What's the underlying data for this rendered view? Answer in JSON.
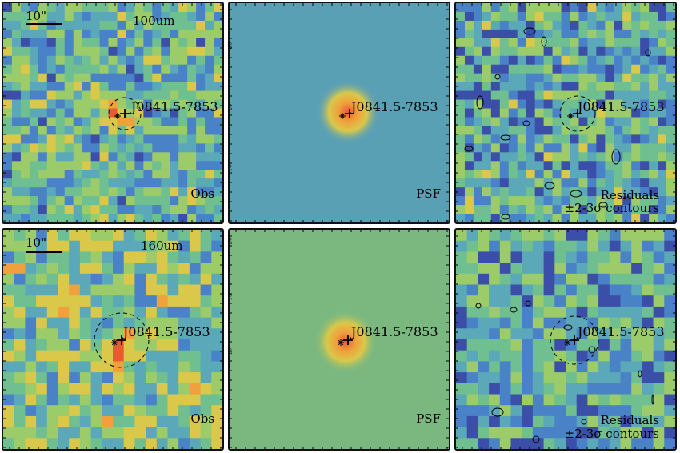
{
  "colors": {
    "cmap": [
      "#2a1a6a",
      "#3b4fa8",
      "#4a82c8",
      "#5aa8b8",
      "#6fbf90",
      "#9ccb6a",
      "#d9c84a",
      "#f0a03c",
      "#e85a30",
      "#c82020"
    ],
    "psf_bg_top": "#5aa0b4",
    "psf_bg_bottom": "#7ab880",
    "frame": "#111111"
  },
  "top_row": {
    "band": "100um",
    "scale_bar": "10\"",
    "source": "J0841.5-7853",
    "obs_label": "Obs",
    "psf_label": "PSF",
    "residuals_label": "Residuals",
    "contours_label": "±2-3σ contours",
    "ticks": [
      "10",
      "20",
      "30"
    ]
  },
  "bottom_row": {
    "band": "160um",
    "scale_bar": "10\"",
    "source": "J0841.5-7853",
    "obs_label": "Obs",
    "psf_label": "PSF",
    "residuals_label": "Residuals",
    "contours_label": "±2-3σ contours",
    "ticks": [
      "10",
      "15",
      "20"
    ]
  }
}
